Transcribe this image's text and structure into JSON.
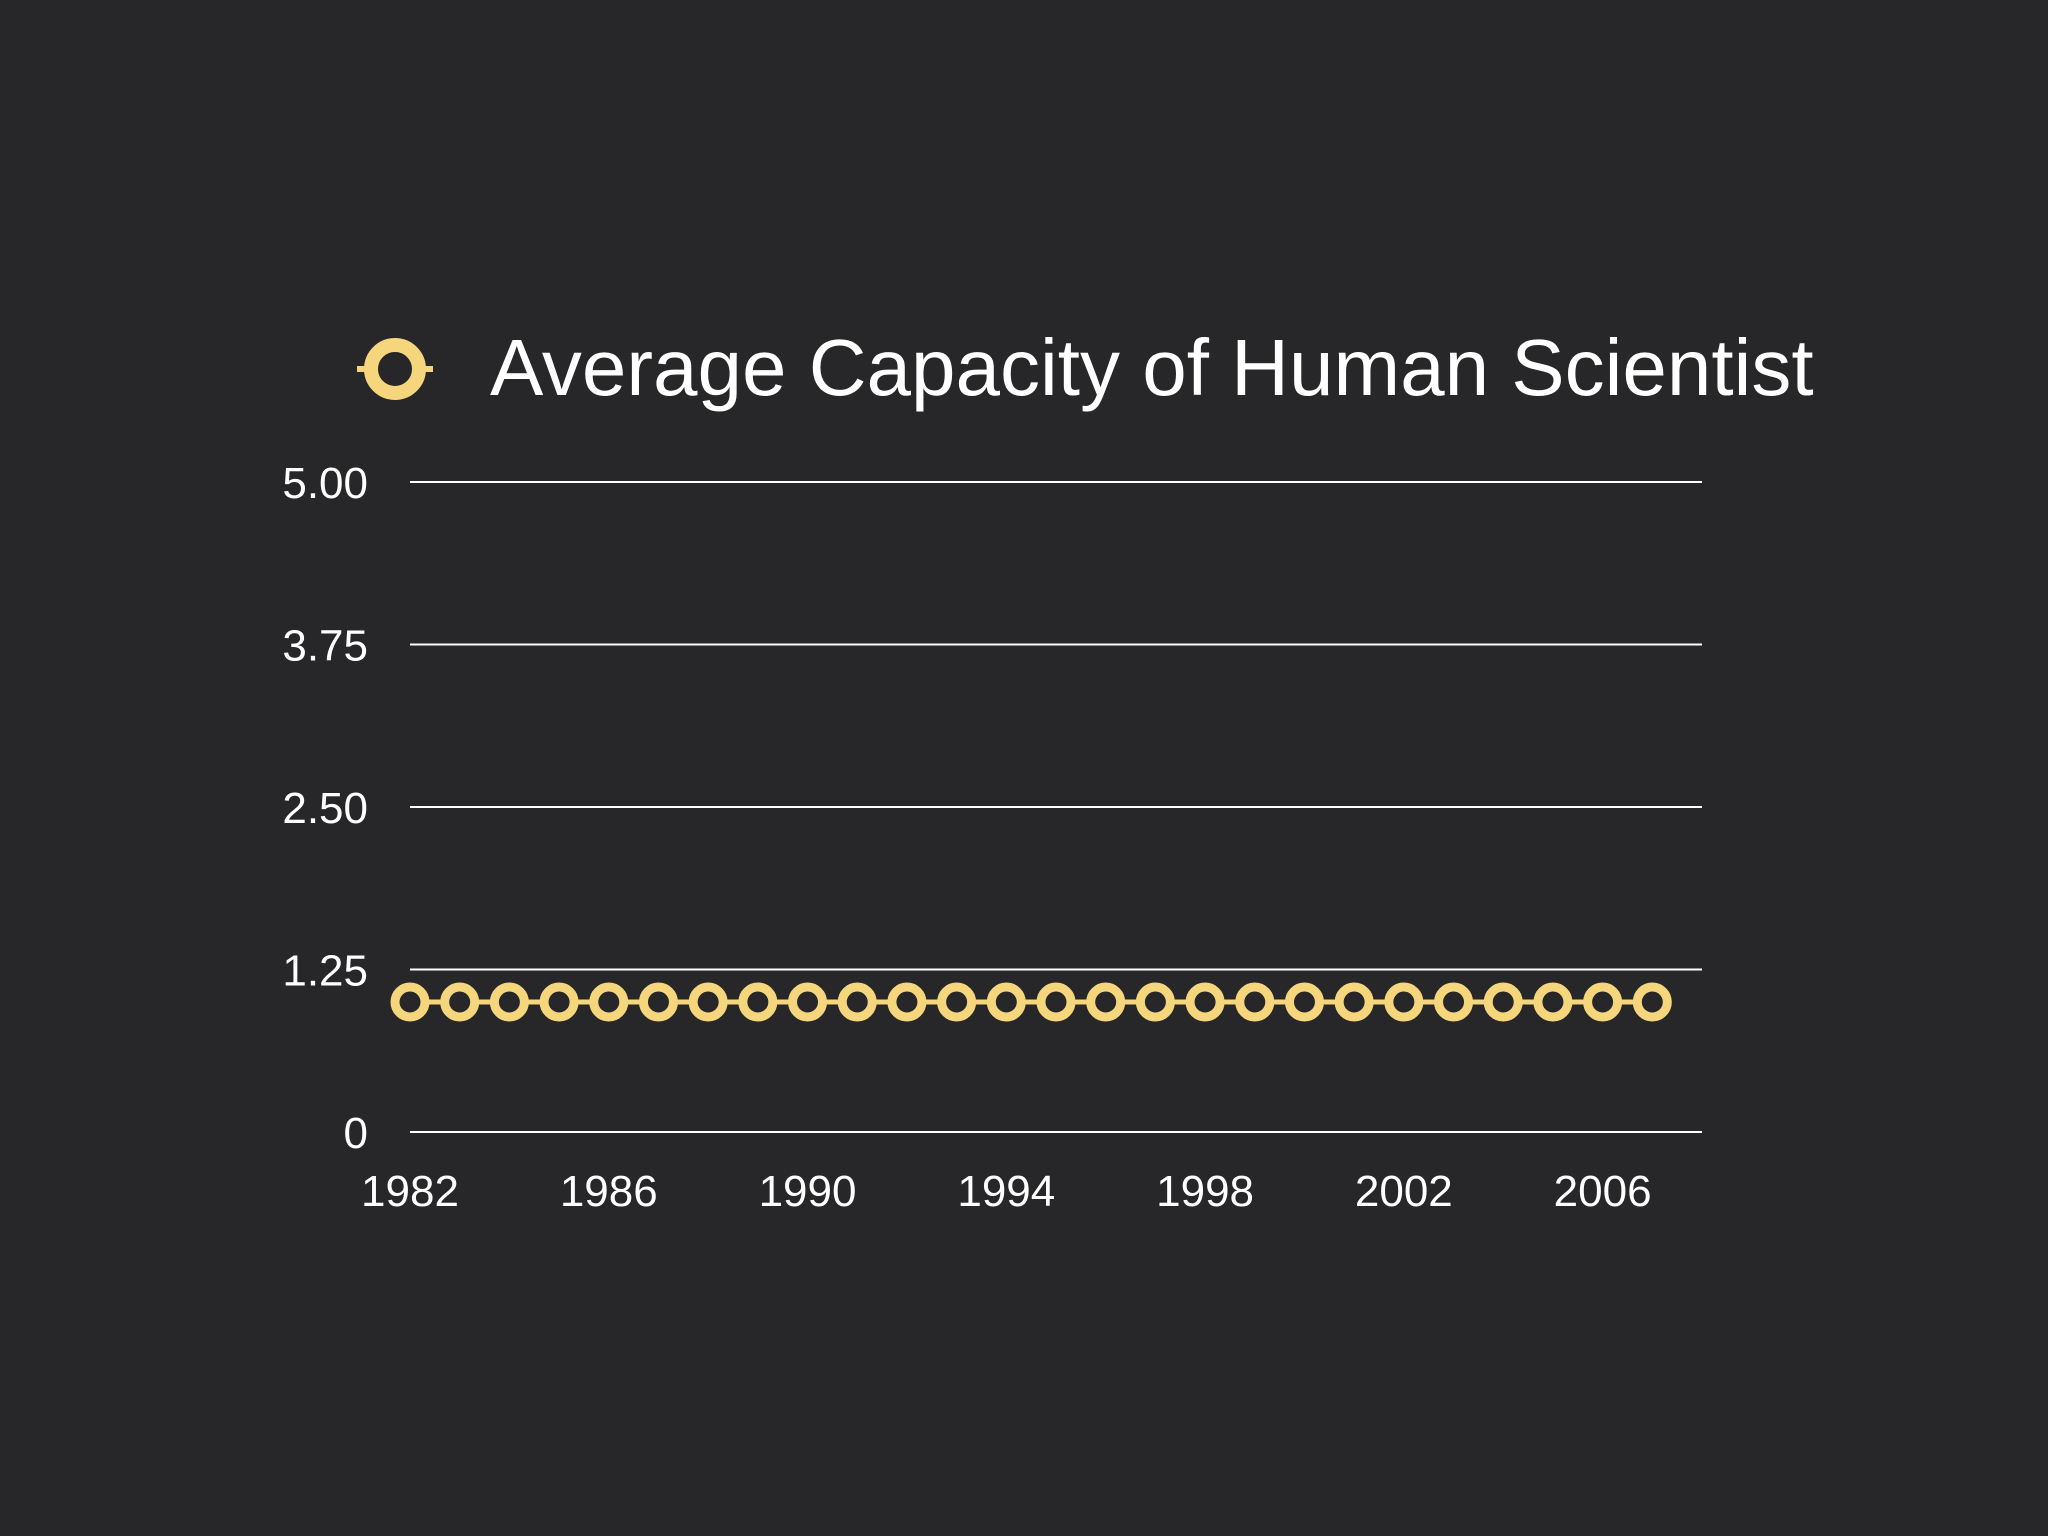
{
  "colors": {
    "background": "#272628",
    "series": "#f6d67c",
    "gridline": "#ffffff",
    "text": "#ffffff"
  },
  "chart_data": {
    "type": "line",
    "title": "",
    "xlabel": "",
    "ylabel": "",
    "legend_position": "top",
    "grid": true,
    "x": [
      1982,
      1983,
      1984,
      1985,
      1986,
      1987,
      1988,
      1989,
      1990,
      1991,
      1992,
      1993,
      1994,
      1995,
      1996,
      1997,
      1998,
      1999,
      2000,
      2001,
      2002,
      2003,
      2004,
      2005,
      2006,
      2007
    ],
    "xlim": [
      1982,
      2008
    ],
    "x_tick_labels": [
      "1982",
      "1986",
      "1990",
      "1994",
      "1998",
      "2002",
      "2006"
    ],
    "ylim": [
      0,
      5
    ],
    "y_tick_labels": [
      "0",
      "1.25",
      "2.50",
      "3.75",
      "5.00"
    ],
    "series": [
      {
        "name": "Average Capacity of Human Scientist",
        "marker": "ring",
        "values": [
          1,
          1,
          1,
          1,
          1,
          1,
          1,
          1,
          1,
          1,
          1,
          1,
          1,
          1,
          1,
          1,
          1,
          1,
          1,
          1,
          1,
          1,
          1,
          1,
          1,
          1
        ]
      }
    ]
  }
}
